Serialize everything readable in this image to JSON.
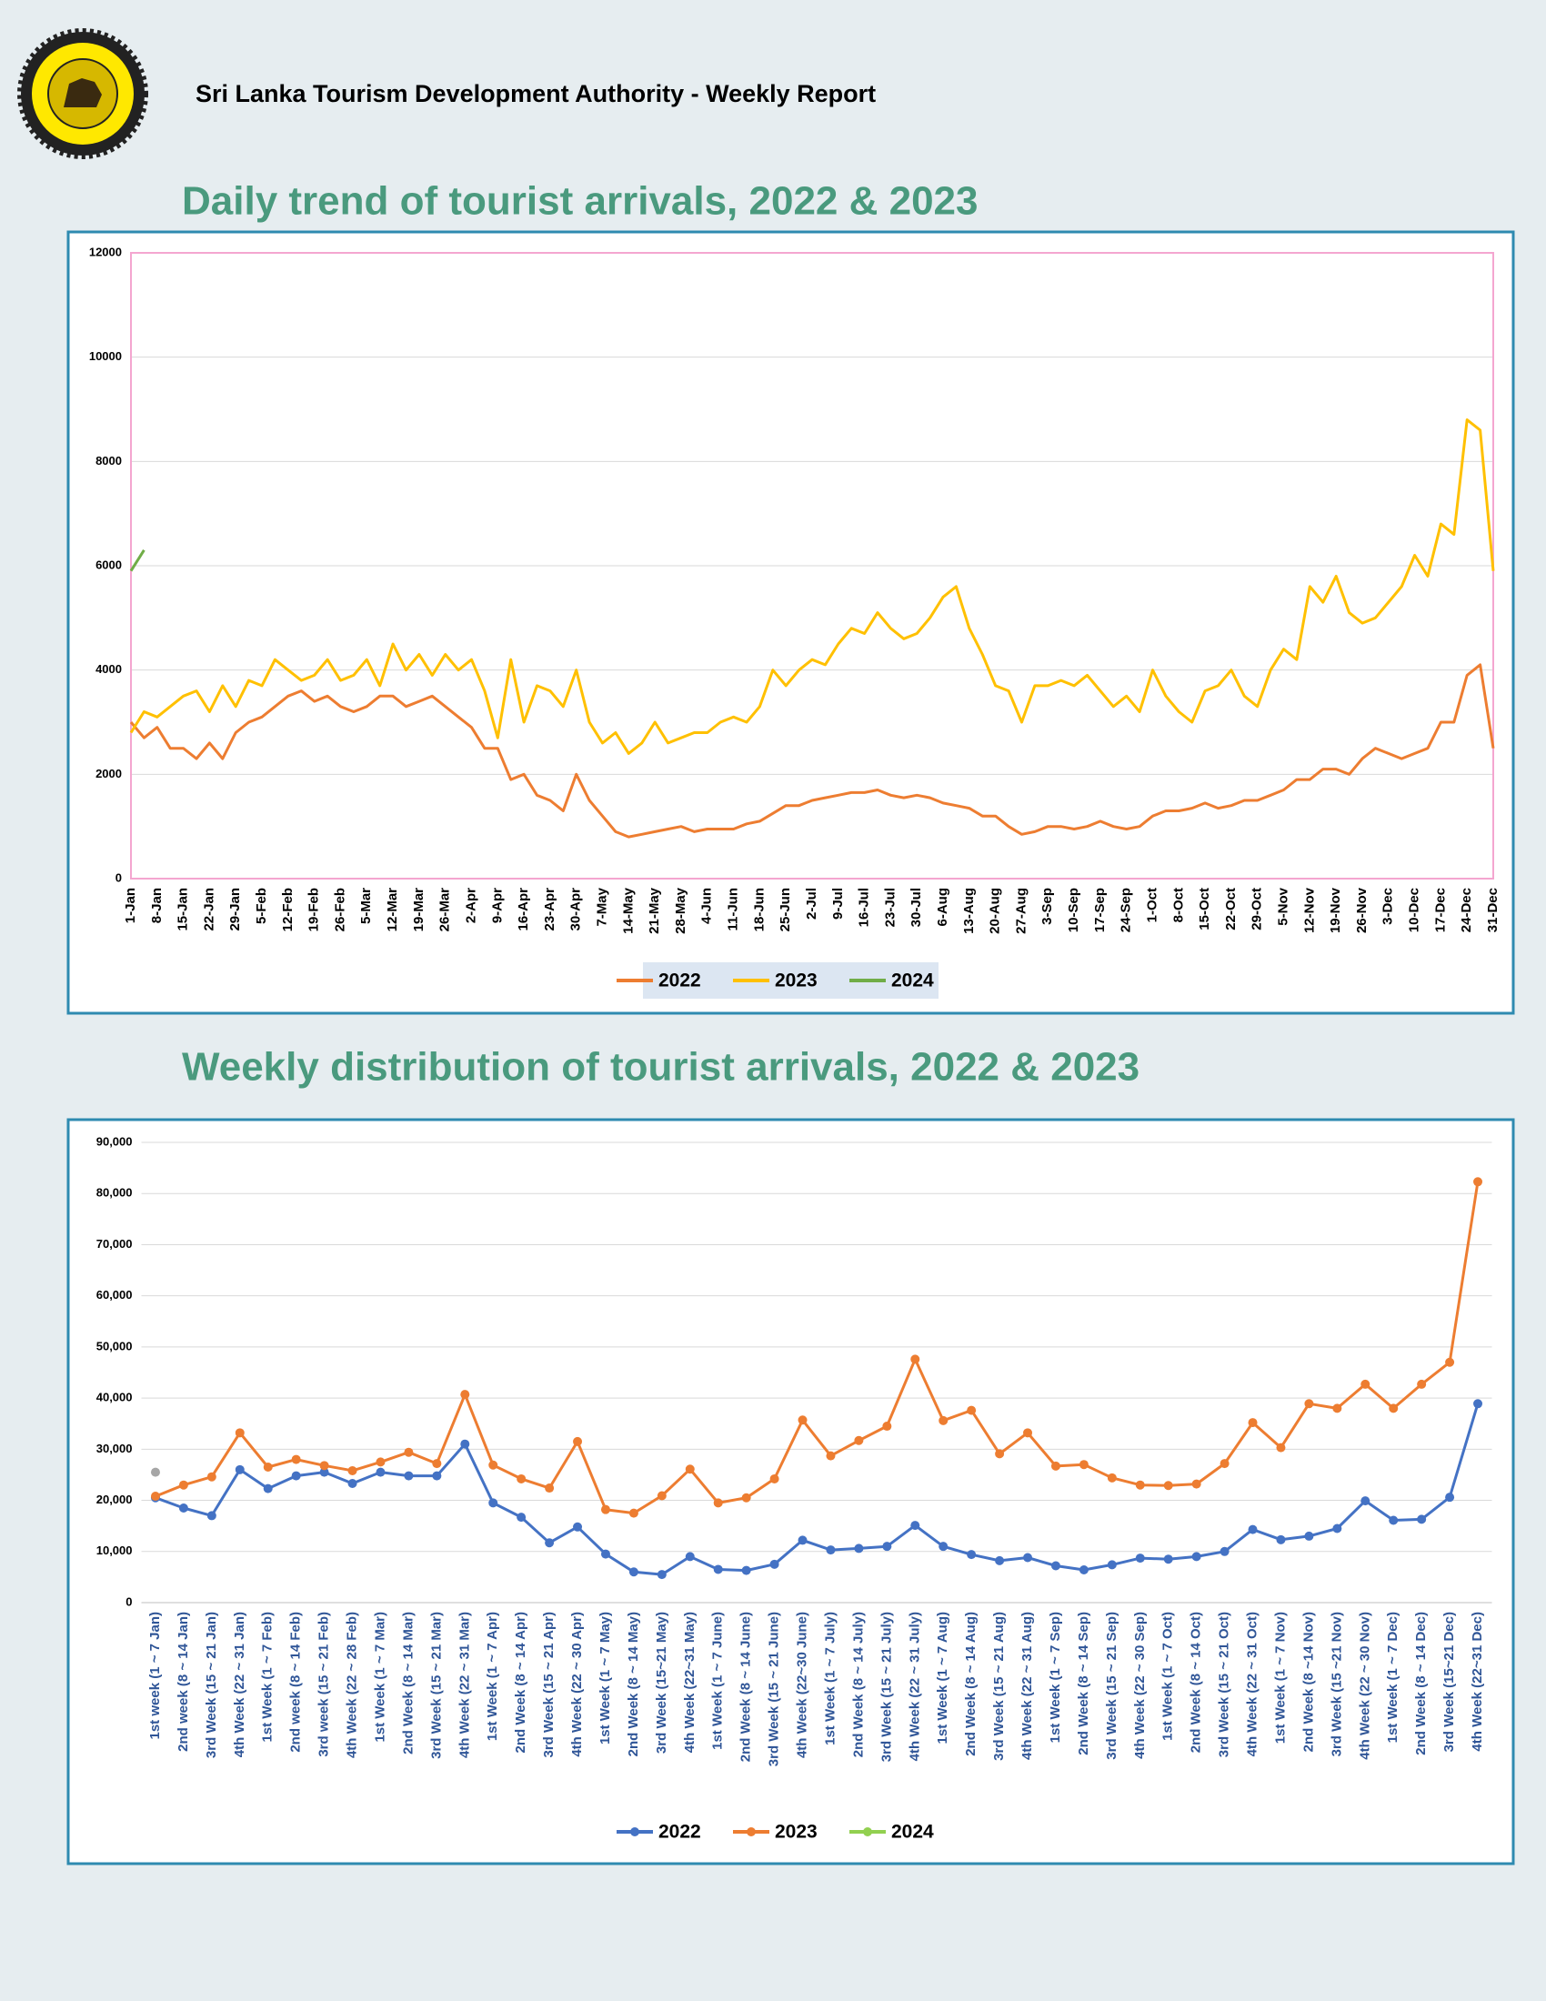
{
  "header": {
    "title": "Sri Lanka Tourism Development Authority  - Weekly Report"
  },
  "chart_data": [
    {
      "type": "line",
      "title": "Daily trend of tourist arrivals, 2022 & 2023",
      "categories": [
        "1-Jan",
        null,
        "8-Jan",
        null,
        "15-Jan",
        null,
        "22-Jan",
        null,
        "29-Jan",
        null,
        "5-Feb",
        null,
        "12-Feb",
        null,
        "19-Feb",
        null,
        "26-Feb",
        null,
        "5-Mar",
        null,
        "12-Mar",
        null,
        "19-Mar",
        null,
        "26-Mar",
        null,
        "2-Apr",
        null,
        "9-Apr",
        null,
        "16-Apr",
        null,
        "23-Apr",
        null,
        "30-Apr",
        null,
        "7-May",
        null,
        "14-May",
        null,
        "21-May",
        null,
        "28-May",
        null,
        "4-Jun",
        null,
        "11-Jun",
        null,
        "18-Jun",
        null,
        "25-Jun",
        null,
        "2-Jul",
        null,
        "9-Jul",
        null,
        "16-Jul",
        null,
        "23-Jul",
        null,
        "30-Jul",
        null,
        "6-Aug",
        null,
        "13-Aug",
        null,
        "20-Aug",
        null,
        "27-Aug",
        null,
        "3-Sep",
        null,
        "10-Sep",
        null,
        "17-Sep",
        null,
        "24-Sep",
        null,
        "1-Oct",
        null,
        "8-Oct",
        null,
        "15-Oct",
        null,
        "22-Oct",
        null,
        "29-Oct",
        null,
        "5-Nov",
        null,
        "12-Nov",
        null,
        "19-Nov",
        null,
        "26-Nov",
        null,
        "3-Dec",
        null,
        "10-Dec",
        null,
        "17-Dec",
        null,
        "24-Dec",
        null,
        "31-Dec"
      ],
      "series": [
        {
          "name": "2022",
          "color": "#ed7d31",
          "values": [
            3000,
            2700,
            2900,
            2500,
            2500,
            2300,
            2600,
            2300,
            2800,
            3000,
            3100,
            3300,
            3500,
            3600,
            3400,
            3500,
            3300,
            3200,
            3300,
            3500,
            3500,
            3300,
            3400,
            3500,
            3300,
            3100,
            2900,
            2500,
            2500,
            1900,
            2000,
            1600,
            1500,
            1300,
            2000,
            1500,
            1200,
            900,
            800,
            850,
            900,
            950,
            1000,
            900,
            950,
            950,
            950,
            1050,
            1100,
            1250,
            1400,
            1400,
            1500,
            1550,
            1600,
            1650,
            1650,
            1700,
            1600,
            1550,
            1600,
            1550,
            1450,
            1400,
            1350,
            1200,
            1200,
            1000,
            850,
            900,
            1000,
            1000,
            950,
            1000,
            1100,
            1000,
            950,
            1000,
            1200,
            1300,
            1300,
            1350,
            1450,
            1350,
            1400,
            1500,
            1500,
            1600,
            1700,
            1900,
            1900,
            2100,
            2100,
            2000,
            2300,
            2500,
            2400,
            2300,
            2400,
            2500,
            3000,
            3000,
            3900,
            4100,
            2500
          ]
        },
        {
          "name": "2023",
          "color": "#ffc000",
          "values": [
            2800,
            3200,
            3100,
            3300,
            3500,
            3600,
            3200,
            3700,
            3300,
            3800,
            3700,
            4200,
            4000,
            3800,
            3900,
            4200,
            3800,
            3900,
            4200,
            3700,
            4500,
            4000,
            4300,
            3900,
            4300,
            4000,
            4200,
            3600,
            2700,
            4200,
            3000,
            3700,
            3600,
            3300,
            4000,
            3000,
            2600,
            2800,
            2400,
            2600,
            3000,
            2600,
            2700,
            2800,
            2800,
            3000,
            3100,
            3000,
            3300,
            4000,
            3700,
            4000,
            4200,
            4100,
            4500,
            4800,
            4700,
            5100,
            4800,
            4600,
            4700,
            5000,
            5400,
            5600,
            4800,
            4300,
            3700,
            3600,
            3000,
            3700,
            3700,
            3800,
            3700,
            3900,
            3600,
            3300,
            3500,
            3200,
            4000,
            3500,
            3200,
            3000,
            3600,
            3700,
            4000,
            3500,
            3300,
            4000,
            4400,
            4200,
            5600,
            5300,
            5800,
            5100,
            4900,
            5000,
            5300,
            5600,
            6200,
            5800,
            6800,
            6600,
            8800,
            8600,
            5900
          ]
        },
        {
          "name": "2024",
          "color": "#70ad47",
          "values": [
            5900,
            6300,
            null,
            null,
            null,
            null,
            null,
            null,
            null,
            null,
            null,
            null,
            null,
            null,
            null,
            null,
            null,
            null,
            null,
            null,
            null,
            null,
            null,
            null,
            null,
            null,
            null,
            null,
            null,
            null,
            null,
            null,
            null,
            null,
            null,
            null,
            null,
            null,
            null,
            null,
            null,
            null,
            null,
            null,
            null,
            null,
            null,
            null,
            null,
            null,
            null,
            null,
            null,
            null,
            null,
            null,
            null,
            null,
            null,
            null,
            null,
            null,
            null,
            null,
            null,
            null,
            null,
            null,
            null,
            null,
            null,
            null,
            null,
            null,
            null,
            null,
            null,
            null,
            null,
            null,
            null,
            null,
            null,
            null,
            null,
            null,
            null,
            null,
            null,
            null,
            null,
            null,
            null,
            null,
            null,
            null,
            null,
            null,
            null,
            null,
            null,
            null,
            null,
            null,
            null
          ]
        }
      ],
      "ylim": [
        0,
        12000
      ],
      "yticks": [
        0,
        2000,
        4000,
        6000,
        8000,
        10000,
        12000
      ],
      "grid": true,
      "plot_border_color": "#f4a6d0",
      "legend": "bottom"
    },
    {
      "type": "line",
      "title": "Weekly distribution  of tourist arrivals, 2022 & 2023",
      "categories": [
        "1st week (1 ~ 7 Jan)",
        "2nd week (8 ~ 14 Jan)",
        "3rd Week (15 ~ 21 Jan)",
        "4th Week (22 ~ 31 Jan)",
        "1st Week (1 ~ 7 Feb)",
        "2nd week (8 ~ 14 Feb)",
        "3rd week (15 ~ 21 Feb)",
        "4th Week (22 ~ 28 Feb)",
        "1st Week (1 ~ 7 Mar)",
        "2nd Week (8 ~ 14 Mar)",
        "3rd Week (15 ~ 21 Mar)",
        "4th Week (22 ~ 31 Mar)",
        "1st Week (1 ~ 7 Apr)",
        "2nd Week (8 ~ 14 Apr)",
        "3rd Week (15 ~ 21 Apr)",
        "4th Week (22 ~ 30 Apr)",
        "1st Week (1 ~ 7 May)",
        "2nd Week (8 ~ 14 May)",
        "3rd Week (15~21 May)",
        "4th Week (22~31 May)",
        "1st Week (1 ~ 7 June)",
        "2nd Week (8 ~ 14 June)",
        "3rd Week (15 ~ 21 June)",
        "4th Week (22~30 June)",
        "1st Week (1 ~ 7 July)",
        "2nd Week (8 ~ 14 July)",
        "3rd Week (15 ~ 21 July)",
        "4th Week (22 ~ 31 July)",
        "1st Week (1 ~ 7 Aug)",
        "2nd Week (8 ~ 14 Aug)",
        "3rd Week (15 ~ 21 Aug)",
        "4th Week (22 ~ 31 Aug)",
        "1st Week (1 ~ 7 Sep)",
        "2nd Week (8 ~ 14 Sep)",
        "3rd Week (15 ~ 21 Sep)",
        "4th Week (22 ~ 30 Sep)",
        "1st Week (1 ~ 7 Oct)",
        "2nd Week (8 ~ 14 Oct)",
        "3rd Week (15 ~ 21 Oct)",
        "4th Week (22 ~ 31 Oct)",
        "1st Week (1 ~ 7 Nov)",
        "2nd Week (8 ~14 Nov)",
        "3rd  Week (15 ~21 Nov)",
        "4th Week (22 ~ 30 Nov)",
        "1st Week (1 ~ 7 Dec)",
        "2nd Week (8 ~ 14 Dec)",
        "3rd Week (15~21 Dec)",
        "4th Week (22~31 Dec)"
      ],
      "series": [
        {
          "name": "2022",
          "color": "#4472c4",
          "values": [
            20500,
            18500,
            17000,
            26000,
            22300,
            24800,
            25500,
            23300,
            25500,
            24800,
            24800,
            31000,
            19500,
            16700,
            11700,
            14800,
            9500,
            6000,
            5500,
            9000,
            6500,
            6300,
            7500,
            12200,
            10300,
            10600,
            11000,
            15100,
            11000,
            9400,
            8200,
            8800,
            7200,
            6400,
            7400,
            8700,
            8500,
            9000,
            10000,
            14300,
            12300,
            13000,
            14500,
            19900,
            16100,
            16300,
            20600,
            38900
          ]
        },
        {
          "name": "2023",
          "color": "#ed7d31",
          "values": [
            20800,
            23000,
            24600,
            33200,
            26500,
            28000,
            26800,
            25800,
            27500,
            29400,
            27200,
            40700,
            26900,
            24200,
            22400,
            31500,
            18200,
            17500,
            20900,
            26100,
            19500,
            20500,
            24200,
            35700,
            28700,
            31700,
            34500,
            47600,
            35600,
            37600,
            29100,
            33200,
            26700,
            27000,
            24400,
            23000,
            22900,
            23200,
            27200,
            35200,
            30300,
            38900,
            38000,
            42700,
            38000,
            42700,
            47000,
            82300
          ]
        },
        {
          "name": "2024",
          "color": "#92d050",
          "marker_color": "#a6a6a6",
          "values": [
            25500,
            null,
            null,
            null,
            null,
            null,
            null,
            null,
            null,
            null,
            null,
            null,
            null,
            null,
            null,
            null,
            null,
            null,
            null,
            null,
            null,
            null,
            null,
            null,
            null,
            null,
            null,
            null,
            null,
            null,
            null,
            null,
            null,
            null,
            null,
            null,
            null,
            null,
            null,
            null,
            null,
            null,
            null,
            null,
            null,
            null,
            null,
            null
          ]
        }
      ],
      "ylim": [
        0,
        90000
      ],
      "yticks": [
        0,
        {
          "value": 10000,
          "label": "10,000"
        },
        {
          "value": 20000,
          "label": "20,000"
        },
        {
          "value": 30000,
          "label": "30,000"
        },
        {
          "value": 40000,
          "label": "40,000"
        },
        {
          "value": 50000,
          "label": "50,000"
        },
        {
          "value": 60000,
          "label": "60,000"
        },
        {
          "value": 70000,
          "label": "70,000"
        },
        {
          "value": 80000,
          "label": "80,000"
        },
        {
          "value": 90000,
          "label": "90,000"
        }
      ],
      "grid": true,
      "markers": true,
      "legend": "bottom"
    }
  ]
}
